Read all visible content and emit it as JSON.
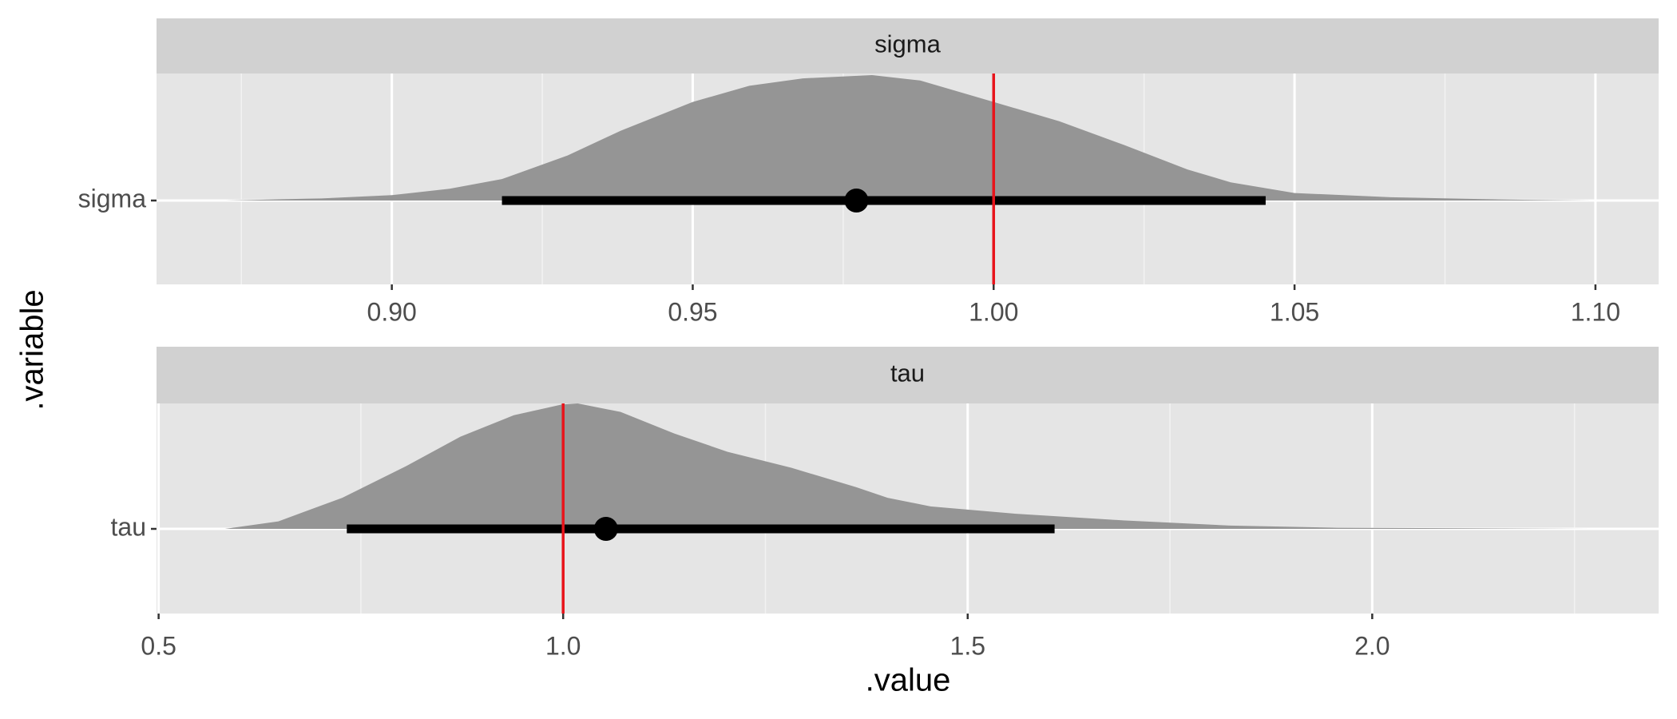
{
  "x_label": ".value",
  "y_label": ".variable",
  "chart_data": [
    {
      "type": "halfeye",
      "title": "sigma",
      "category": "sigma",
      "x": [
        0.8723,
        0.8883,
        0.9,
        0.9096,
        0.9183,
        0.9292,
        0.938,
        0.95,
        0.9594,
        0.9683,
        0.9798,
        0.9878,
        1.0,
        1.0109,
        1.0216,
        1.0322,
        1.0394,
        1.05,
        1.066,
        1.0838,
        1.0994
      ],
      "density": [
        0,
        0.017,
        0.043,
        0.094,
        0.171,
        0.359,
        0.556,
        0.786,
        0.915,
        0.974,
        1.0,
        0.957,
        0.786,
        0.632,
        0.444,
        0.248,
        0.145,
        0.06,
        0.026,
        0.009,
        0
      ],
      "point": 0.9772,
      "interval": [
        0.9183,
        1.0452
      ],
      "reference": 1.0,
      "xlim": [
        0.8609,
        1.1105
      ],
      "xticks": [
        {
          "value": 0.9,
          "label": "0.90"
        },
        0.95,
        {
          "value": 1.0,
          "label": "1.00"
        },
        1.05,
        {
          "value": 1.1,
          "label": "1.10"
        }
      ],
      "minor_xticks": [
        0.875,
        0.925,
        0.975,
        1.025,
        1.075
      ],
      "fill_color": "#959595",
      "reference_color": "#e8141b",
      "grid": true
    },
    {
      "type": "halfeye",
      "title": "tau",
      "category": "tau",
      "x": [
        0.582,
        0.648,
        0.727,
        0.807,
        0.873,
        0.939,
        0.998,
        1.018,
        1.071,
        1.137,
        1.203,
        1.282,
        1.362,
        1.401,
        1.454,
        1.56,
        1.692,
        1.824,
        1.956,
        2.268
      ],
      "density": [
        0,
        0.06,
        0.248,
        0.504,
        0.735,
        0.906,
        0.991,
        1.0,
        0.932,
        0.761,
        0.615,
        0.487,
        0.333,
        0.248,
        0.179,
        0.12,
        0.068,
        0.026,
        0.009,
        0
      ],
      "point": 1.0529,
      "interval": [
        0.7326,
        1.6074
      ],
      "reference": 1.0,
      "xlim": [
        0.4974,
        2.354
      ],
      "xticks": [
        0.5,
        {
          "value": 1.0,
          "label": "1.0"
        },
        1.5,
        {
          "value": 2.0,
          "label": "2.0"
        }
      ],
      "minor_xticks": [
        0.75,
        1.25,
        1.75,
        2.25
      ],
      "fill_color": "#959595",
      "reference_color": "#e8141b",
      "grid": true
    }
  ]
}
